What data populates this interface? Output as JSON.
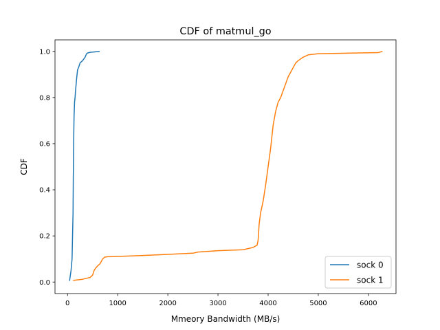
{
  "chart_data": {
    "type": "line",
    "title": "CDF of matmul_go",
    "xlabel": "Mmeory Bandwidth (MB/s)",
    "ylabel": "CDF",
    "xlim": [
      -250,
      6550
    ],
    "ylim": [
      -0.05,
      1.05
    ],
    "xticks": [
      0,
      1000,
      2000,
      3000,
      4000,
      5000,
      6000
    ],
    "yticks": [
      0.0,
      0.2,
      0.4,
      0.6,
      0.8,
      1.0
    ],
    "xtick_labels": [
      "0",
      "1000",
      "2000",
      "3000",
      "4000",
      "5000",
      "6000"
    ],
    "ytick_labels": [
      "0.0",
      "0.2",
      "0.4",
      "0.6",
      "0.8",
      "1.0"
    ],
    "grid": false,
    "legend_position": "lower-right",
    "series": [
      {
        "name": "sock 0",
        "color": "#1f77b4",
        "x": [
          40,
          70,
          90,
          100,
          110,
          115,
          120,
          125,
          130,
          140,
          150,
          160,
          180,
          200,
          220,
          250,
          300,
          350,
          380,
          400,
          450,
          500,
          640
        ],
        "y": [
          0.005,
          0.05,
          0.1,
          0.2,
          0.3,
          0.45,
          0.55,
          0.65,
          0.72,
          0.78,
          0.8,
          0.83,
          0.88,
          0.92,
          0.93,
          0.95,
          0.96,
          0.975,
          0.99,
          0.993,
          0.996,
          0.997,
          1.0
        ]
      },
      {
        "name": "sock 1",
        "color": "#ff7f0e",
        "x": [
          110,
          300,
          450,
          500,
          530,
          560,
          600,
          650,
          700,
          740,
          800,
          1000,
          1500,
          2000,
          2500,
          2600,
          3000,
          3500,
          3600,
          3700,
          3780,
          3800,
          3820,
          3850,
          3900,
          3950,
          4000,
          4050,
          4100,
          4150,
          4200,
          4250,
          4300,
          4350,
          4400,
          4450,
          4500,
          4550,
          4600,
          4700,
          4800,
          5000,
          5500,
          6000,
          6200,
          6280
        ],
        "y": [
          0.007,
          0.012,
          0.02,
          0.03,
          0.05,
          0.06,
          0.07,
          0.08,
          0.1,
          0.108,
          0.11,
          0.111,
          0.115,
          0.12,
          0.125,
          0.13,
          0.136,
          0.14,
          0.145,
          0.15,
          0.16,
          0.18,
          0.25,
          0.3,
          0.35,
          0.42,
          0.5,
          0.58,
          0.68,
          0.74,
          0.78,
          0.8,
          0.83,
          0.86,
          0.89,
          0.91,
          0.93,
          0.95,
          0.96,
          0.975,
          0.985,
          0.99,
          0.992,
          0.994,
          0.995,
          1.0
        ]
      }
    ]
  }
}
